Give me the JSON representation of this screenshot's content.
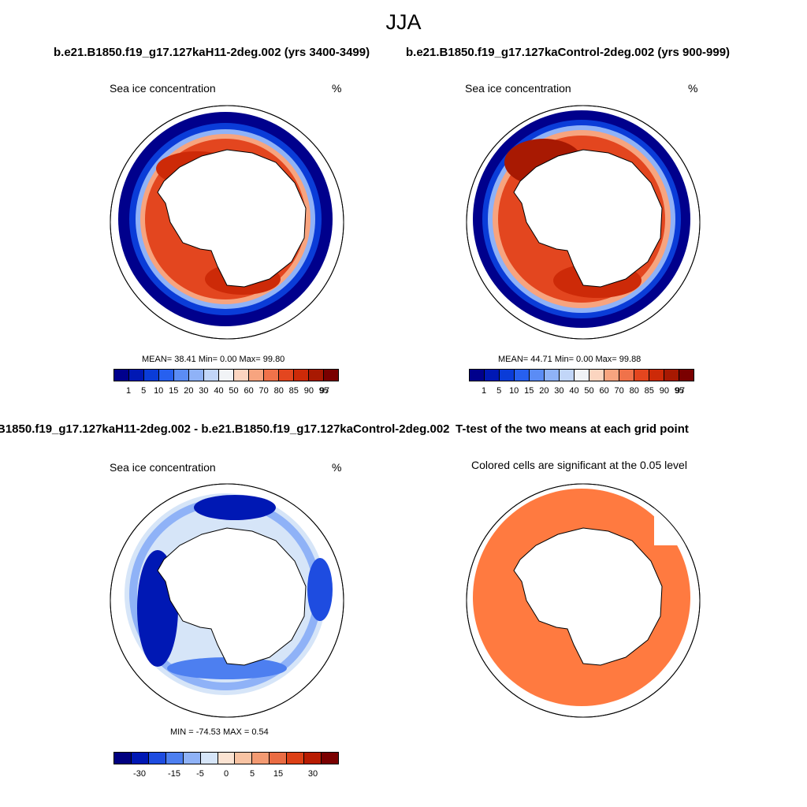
{
  "figure": {
    "title": "JJA",
    "run1_title": "b.e21.B1850.f19_g17.127kaH11-2deg.002 (yrs 3400-3499)",
    "run2_title": "b.e21.B1850.f19_g17.127kaControl-2deg.002 (yrs 900-999)",
    "diff_title": "B1850.f19_g17.127kaH11-2deg.002 - b.e21.B1850.f19_g17.127kaControl-2deg.002",
    "ttest_title": "T-test of the two means at each grid point",
    "ttest_subtitle": "Colored cells are significant at the 0.05 level"
  },
  "panels": {
    "p1": {
      "variable": "Sea ice concentration",
      "unit": "%",
      "stats": "MEAN=  38.41  Min=   0.00  Max=  99.80"
    },
    "p2": {
      "variable": "Sea ice concentration",
      "unit": "%",
      "stats": "MEAN=  44.71  Min=   0.00  Max=  99.88"
    },
    "p3": {
      "variable": "Sea ice concentration",
      "unit": "%",
      "stats": "MIN = -74.53 MAX =   0.54"
    }
  },
  "colorbars": {
    "abs_labels": [
      "1",
      "5",
      "10",
      "15",
      "20",
      "30",
      "40",
      "50",
      "60",
      "70",
      "80",
      "85",
      "90",
      "95",
      "97"
    ],
    "abs_colors": [
      "#00008c",
      "#0018b4",
      "#0a3cd8",
      "#2760ef",
      "#5b8cf5",
      "#8fb2f7",
      "#c2d6f8",
      "#f1f3f6",
      "#fbd5c0",
      "#f7a47f",
      "#f0724a",
      "#e3461f",
      "#cd2a08",
      "#a81902",
      "#7a0000"
    ],
    "diff_labels": [
      "-30",
      "-15",
      "-5",
      "0",
      "5",
      "15",
      "30"
    ],
    "diff_colors": [
      "#000080",
      "#0018b4",
      "#1e4ce0",
      "#4d7ff0",
      "#8fb2f7",
      "#d6e5f8",
      "#fbe3d2",
      "#f8c3a3",
      "#f39a72",
      "#ea6c43",
      "#dc4016",
      "#b81c02",
      "#7a0000"
    ],
    "ttest_color": "#ff7a40"
  }
}
